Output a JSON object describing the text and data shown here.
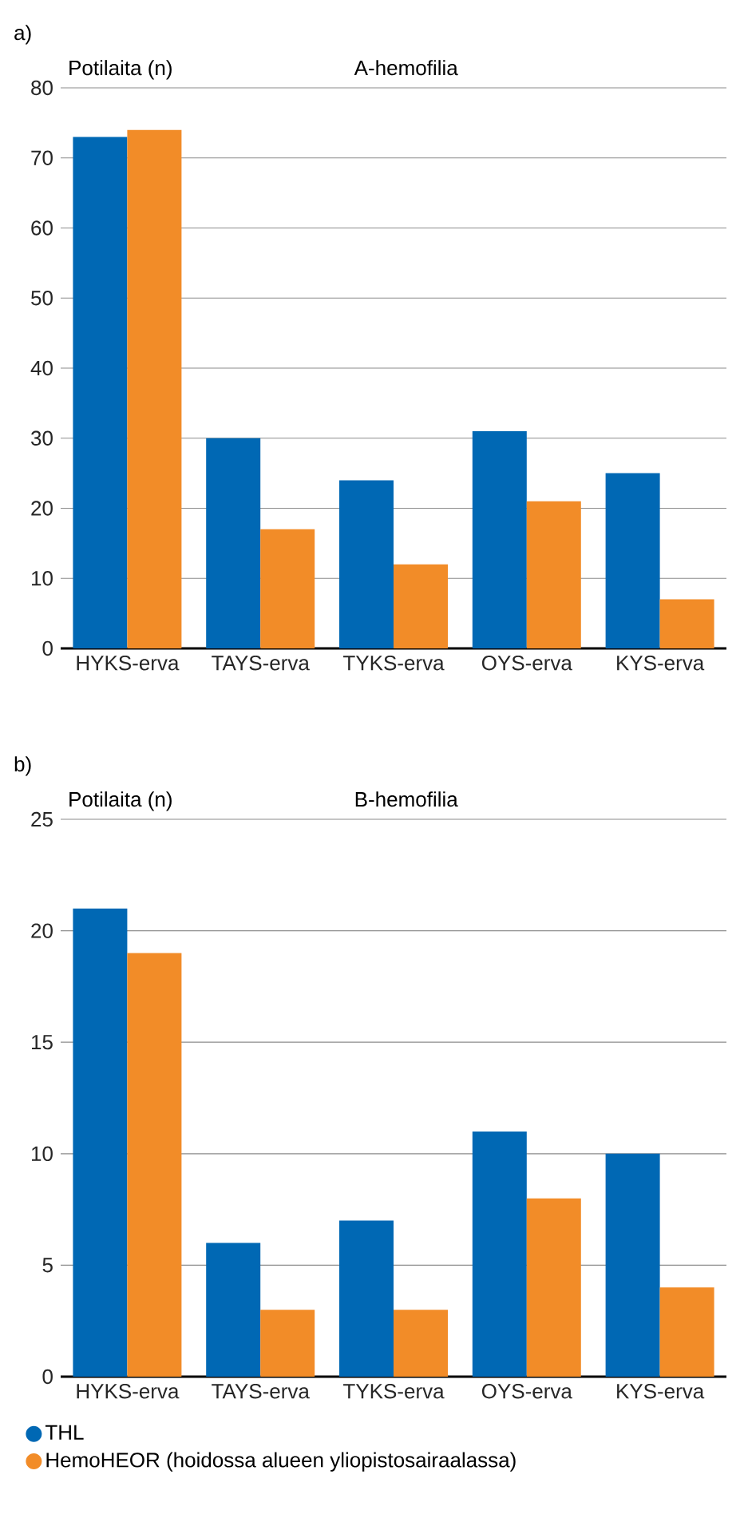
{
  "chart_data": [
    {
      "type": "bar",
      "title": "A-hemofilia",
      "ylabel": "Potilaita (n)",
      "annotations": [
        "a)"
      ],
      "categories": [
        "HYKS-erva",
        "TAYS-erva",
        "TYKS-erva",
        "OYS-erva",
        "KYS-erva"
      ],
      "series": [
        {
          "color": "#0068b4",
          "values": [
            73,
            30,
            24,
            31,
            25
          ]
        },
        {
          "color": "#f28c28",
          "values": [
            74,
            17,
            12,
            21,
            7
          ]
        }
      ],
      "ylim": [
        0,
        80
      ],
      "yticks": [
        0,
        10,
        20,
        30,
        40,
        50,
        60,
        70,
        80
      ],
      "grid": "y",
      "legend": false
    },
    {
      "type": "bar",
      "title": "B-hemofilia",
      "ylabel": "Potilaita (n)",
      "annotations": [
        "b)"
      ],
      "categories": [
        "HYKS-erva",
        "TAYS-erva",
        "TYKS-erva",
        "OYS-erva",
        "KYS-erva"
      ],
      "series": [
        {
          "name": "THL",
          "color": "#0068b4",
          "values": [
            21,
            6,
            7,
            11,
            10
          ]
        },
        {
          "name": "HemoHEOR (hoidossa alueen yliopistosairaalassa)",
          "color": "#f28c28",
          "values": [
            19,
            3,
            3,
            8,
            4
          ]
        }
      ],
      "ylim": [
        0,
        25
      ],
      "yticks": [
        0,
        5,
        10,
        15,
        20,
        25
      ],
      "grid": "y",
      "legend": "bottom"
    }
  ]
}
